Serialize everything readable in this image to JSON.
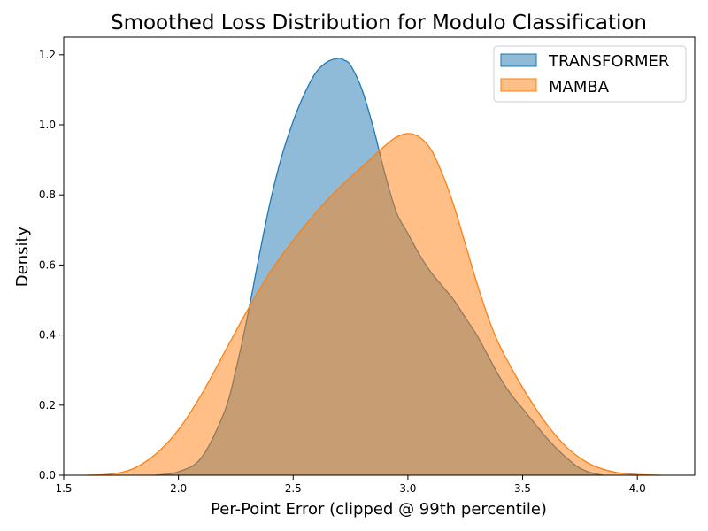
{
  "chart_data": {
    "type": "area",
    "title": "Smoothed Loss Distribution for Modulo Classification",
    "xlabel": "Per-Point Error (clipped @ 99th percentile)",
    "ylabel": "Density",
    "xlim": [
      1.5,
      4.25
    ],
    "ylim": [
      0,
      1.25
    ],
    "xticks": [
      "1.5",
      "2.0",
      "2.5",
      "3.0",
      "3.5",
      "4.0"
    ],
    "yticks": [
      "0.0",
      "0.2",
      "0.4",
      "0.6",
      "0.8",
      "1.0",
      "1.2"
    ],
    "grid": false,
    "legend_position": "top-right",
    "series": [
      {
        "name": "TRANSFORMER",
        "color": "#1f77b4",
        "x": [
          1.9,
          2.0,
          2.1,
          2.2,
          2.25,
          2.3,
          2.35,
          2.4,
          2.45,
          2.5,
          2.55,
          2.6,
          2.65,
          2.7,
          2.72,
          2.75,
          2.8,
          2.85,
          2.9,
          2.95,
          3.0,
          3.05,
          3.1,
          3.15,
          3.2,
          3.25,
          3.3,
          3.35,
          3.4,
          3.45,
          3.5,
          3.55,
          3.6,
          3.65,
          3.7,
          3.75,
          3.8,
          3.85
        ],
        "values": [
          0.0,
          0.01,
          0.05,
          0.18,
          0.3,
          0.45,
          0.62,
          0.78,
          0.91,
          1.01,
          1.09,
          1.15,
          1.18,
          1.19,
          1.185,
          1.17,
          1.1,
          0.99,
          0.86,
          0.75,
          0.69,
          0.63,
          0.58,
          0.54,
          0.5,
          0.45,
          0.4,
          0.34,
          0.28,
          0.23,
          0.19,
          0.15,
          0.11,
          0.075,
          0.045,
          0.02,
          0.007,
          0.0
        ]
      },
      {
        "name": "MAMBA",
        "color": "#ff7f0e",
        "x": [
          1.6,
          1.7,
          1.8,
          1.9,
          2.0,
          2.1,
          2.2,
          2.3,
          2.4,
          2.5,
          2.6,
          2.7,
          2.8,
          2.85,
          2.9,
          2.95,
          3.0,
          3.05,
          3.1,
          3.15,
          3.2,
          3.25,
          3.3,
          3.35,
          3.4,
          3.5,
          3.6,
          3.7,
          3.8,
          3.9,
          4.0,
          4.1
        ],
        "values": [
          0.0,
          0.003,
          0.018,
          0.06,
          0.13,
          0.23,
          0.35,
          0.47,
          0.58,
          0.67,
          0.75,
          0.82,
          0.88,
          0.91,
          0.94,
          0.965,
          0.975,
          0.965,
          0.93,
          0.86,
          0.77,
          0.66,
          0.55,
          0.45,
          0.37,
          0.25,
          0.15,
          0.075,
          0.03,
          0.009,
          0.002,
          0.0
        ]
      }
    ]
  }
}
